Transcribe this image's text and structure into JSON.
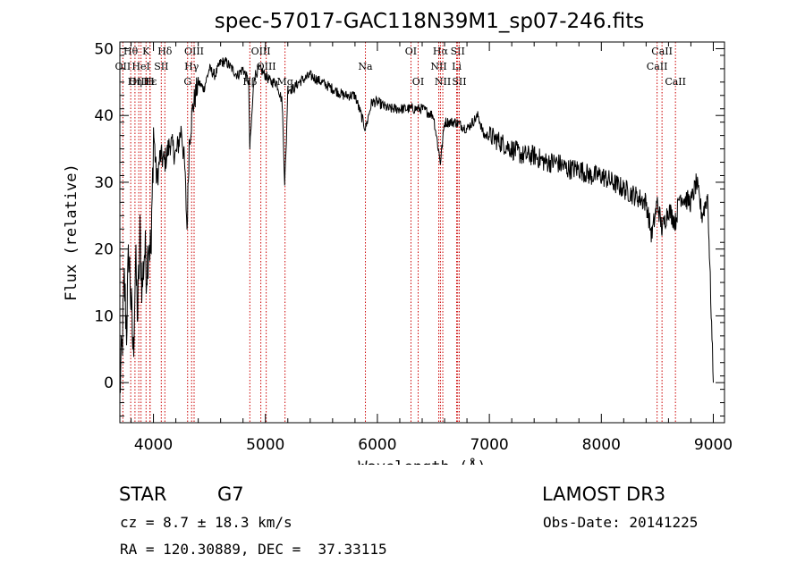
{
  "chart_data": {
    "type": "line",
    "title": "spec-57017-GAC118N39M1_sp07-246.fits",
    "xlabel": "Wavelength (Å)",
    "ylabel": "Flux (relative)",
    "xlim": [
      3700,
      9100
    ],
    "ylim": [
      -6,
      51
    ],
    "xticks": [
      4000,
      5000,
      6000,
      7000,
      8000,
      9000
    ],
    "yticks": [
      0,
      10,
      20,
      30,
      40,
      50
    ],
    "grid": false,
    "line_color": "#000000",
    "marker_color": "#cc0000",
    "series": [
      {
        "x": [
          3700,
          3720,
          3740,
          3760,
          3780,
          3800,
          3820,
          3840,
          3860,
          3880,
          3900,
          3920,
          3940,
          3960,
          3980,
          4000,
          4030,
          4060,
          4100,
          4150,
          4200,
          4250,
          4280,
          4300,
          4320,
          4350,
          4400,
          4450,
          4500,
          4550,
          4600,
          4650,
          4700,
          4750,
          4800,
          4850,
          4861,
          4900,
          4950,
          5000,
          5050,
          5100,
          5150,
          5172,
          5183,
          5200,
          5250,
          5300,
          5400,
          5500,
          5600,
          5700,
          5800,
          5893,
          5950,
          6000,
          6100,
          6200,
          6300,
          6400,
          6500,
          6563,
          6600,
          6700,
          6800,
          6900,
          6950,
          7000,
          7100,
          7200,
          7300,
          7400,
          7500,
          7600,
          7700,
          7800,
          7900,
          8000,
          8100,
          8200,
          8300,
          8400,
          8450,
          8500,
          8542,
          8600,
          8662,
          8700,
          8800,
          8850,
          8900,
          8950,
          9000
        ],
        "y": [
          -1,
          5,
          15,
          8,
          20,
          12,
          4,
          18,
          10,
          22,
          14,
          20,
          17,
          22,
          19,
          38,
          30,
          34,
          33,
          36,
          34,
          38,
          32,
          23,
          36,
          41,
          45,
          44,
          47,
          46,
          48,
          48,
          47,
          46,
          47,
          45,
          35,
          46,
          47,
          46,
          45,
          45,
          42,
          30,
          34,
          44,
          44,
          45,
          46,
          45,
          44,
          43,
          43,
          38,
          42,
          42,
          41,
          41,
          41,
          41,
          40,
          33,
          39,
          39,
          38,
          40,
          37,
          37,
          36,
          35,
          34,
          34,
          33,
          33,
          32,
          32,
          31,
          31,
          30,
          29,
          28,
          27,
          22,
          27,
          23,
          26,
          24,
          28,
          27,
          30,
          25,
          28,
          0
        ]
      }
    ],
    "lines": [
      {
        "label": "Hθ",
        "x": 3797,
        "row": 1
      },
      {
        "label": "OII",
        "x": 3727,
        "row": 2
      },
      {
        "label": "OIII",
        "x": 3869,
        "row": 3
      },
      {
        "label": "K",
        "x": 3934,
        "row": 1
      },
      {
        "label": "HeI",
        "x": 3889,
        "row": 2
      },
      {
        "label": "Hε",
        "x": 3970,
        "row": 3
      },
      {
        "label": "Hδ",
        "x": 4102,
        "row": 1
      },
      {
        "label": "SII",
        "x": 4070,
        "row": 2
      },
      {
        "label": "Hη",
        "x": 3835,
        "row": 3
      },
      {
        "label": "H",
        "x": 3969,
        "row": 3
      },
      {
        "label": "OIII",
        "x": 4363,
        "row": 1
      },
      {
        "label": "Hγ",
        "x": 4341,
        "row": 2
      },
      {
        "label": "G",
        "x": 4305,
        "row": 3
      },
      {
        "label": "OIII",
        "x": 4959,
        "row": 1
      },
      {
        "label": "Hβ",
        "x": 4861,
        "row": 3
      },
      {
        "label": "OIII",
        "x": 5007,
        "row": 2
      },
      {
        "label": "Mg",
        "x": 5175,
        "row": 3
      },
      {
        "label": "Na",
        "x": 5893,
        "row": 2
      },
      {
        "label": "OI",
        "x": 6300,
        "row": 1
      },
      {
        "label": "OI",
        "x": 6364,
        "row": 3
      },
      {
        "label": "Hα",
        "x": 6563,
        "row": 1
      },
      {
        "label": "SII",
        "x": 6717,
        "row": 1
      },
      {
        "label": "NII",
        "x": 6548,
        "row": 2
      },
      {
        "label": "Li",
        "x": 6708,
        "row": 2
      },
      {
        "label": "NII",
        "x": 6584,
        "row": 3
      },
      {
        "label": "SII",
        "x": 6731,
        "row": 3
      },
      {
        "label": "CaII",
        "x": 8542,
        "row": 1
      },
      {
        "label": "CaII",
        "x": 8498,
        "row": 2
      },
      {
        "label": "CaII",
        "x": 8662,
        "row": 3
      }
    ]
  },
  "info": {
    "object_class": "STAR",
    "subclass": "G7",
    "cz": "cz = 8.7 ± 18.3 km/s",
    "coords": "RA = 120.30889, DEC =  37.33115",
    "survey": "LAMOST DR3",
    "obs_date": "Obs-Date: 20141225"
  }
}
